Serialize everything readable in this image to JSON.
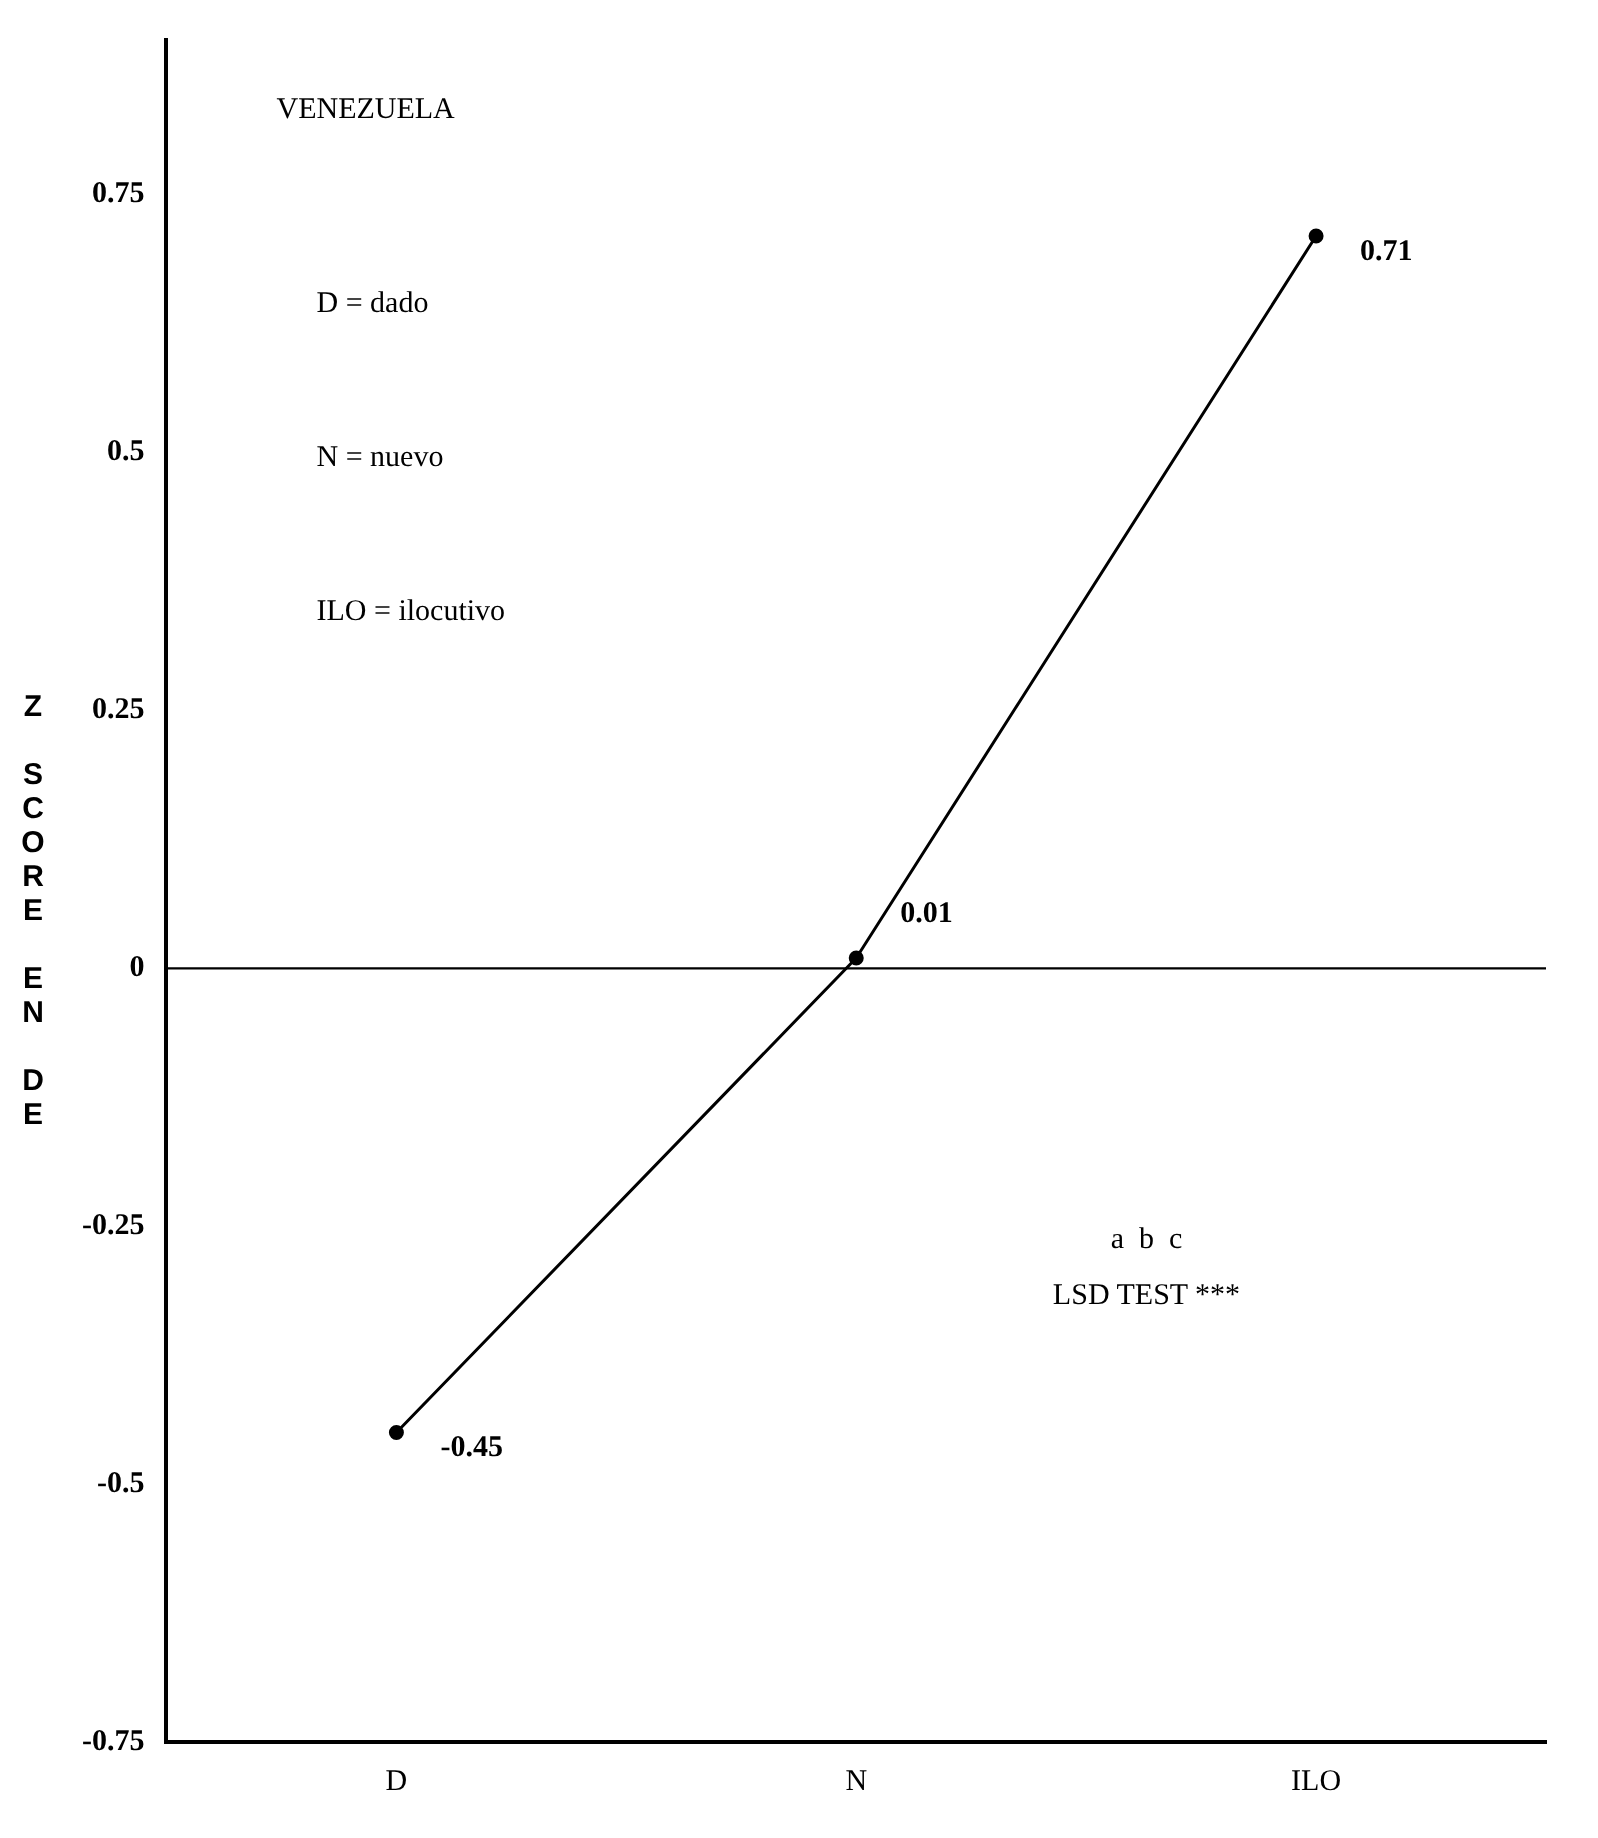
{
  "chart_data": {
    "type": "line",
    "ylabel": "Z SCORE EN DE",
    "categories": [
      "D",
      "N",
      "ILO"
    ],
    "series": [
      {
        "color": "#000000",
        "values": [
          -0.45,
          0.01,
          0.71
        ]
      }
    ],
    "ylim": [
      -0.75,
      0.9
    ],
    "yticks": [
      -0.75,
      -0.5,
      -0.25,
      0,
      0.25,
      0.5,
      0.75
    ],
    "ref_lines": [
      {
        "axis": "y",
        "value": 0,
        "color": "#000000"
      }
    ],
    "annotations": [
      "VENEZUELA",
      "D = dado",
      "N = nuevo",
      "ILO = ilocutivo",
      "a  b  c",
      "LSD TEST ***"
    ],
    "data_labels": true,
    "grid": false,
    "legend": false,
    "marker": "circle",
    "line_style": "solid"
  }
}
